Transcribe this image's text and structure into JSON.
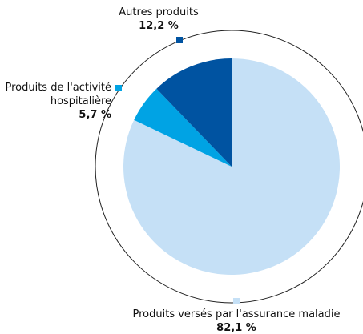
{
  "chart_data": {
    "type": "pie",
    "categories": [
      "Produits versés par l'assurance maladie",
      "Produits de l'activité hospitalière",
      "Autres produits"
    ],
    "values": [
      82.1,
      5.7,
      12.2
    ],
    "value_labels": [
      "82,1 %",
      "5,7 %",
      "12,2 %"
    ],
    "colors": [
      "#c5e0f6",
      "#00a3e4",
      "#0053a1"
    ]
  }
}
